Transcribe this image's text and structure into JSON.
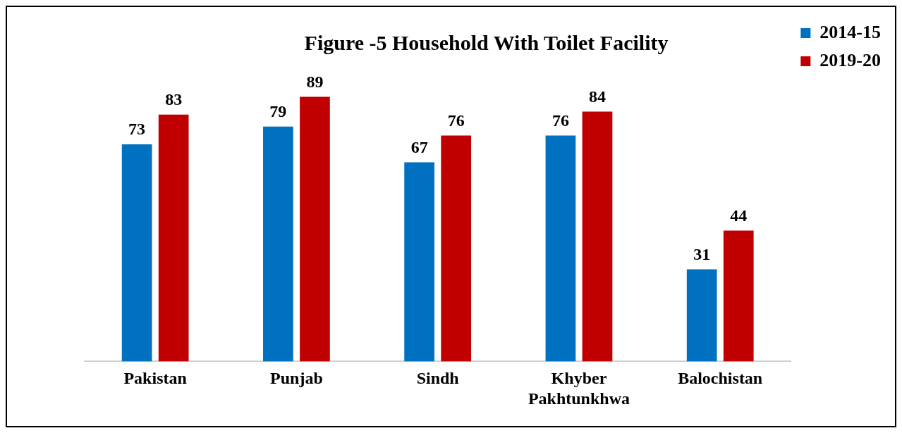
{
  "chart_data": {
    "type": "bar",
    "title": "Figure -5 Household With Toilet Facility",
    "categories": [
      "Pakistan",
      "Punjab",
      "Sindh",
      "Khyber Pakhtunkhwa",
      "Balochistan"
    ],
    "series": [
      {
        "name": "2014-15",
        "color": "#0070c0",
        "values": [
          73,
          79,
          67,
          76,
          31
        ]
      },
      {
        "name": "2019-20",
        "color": "#c00000",
        "values": [
          83,
          89,
          76,
          84,
          44
        ]
      }
    ],
    "tick_labels": "x",
    "data_labels": true,
    "legend": "top right",
    "grid": false
  }
}
